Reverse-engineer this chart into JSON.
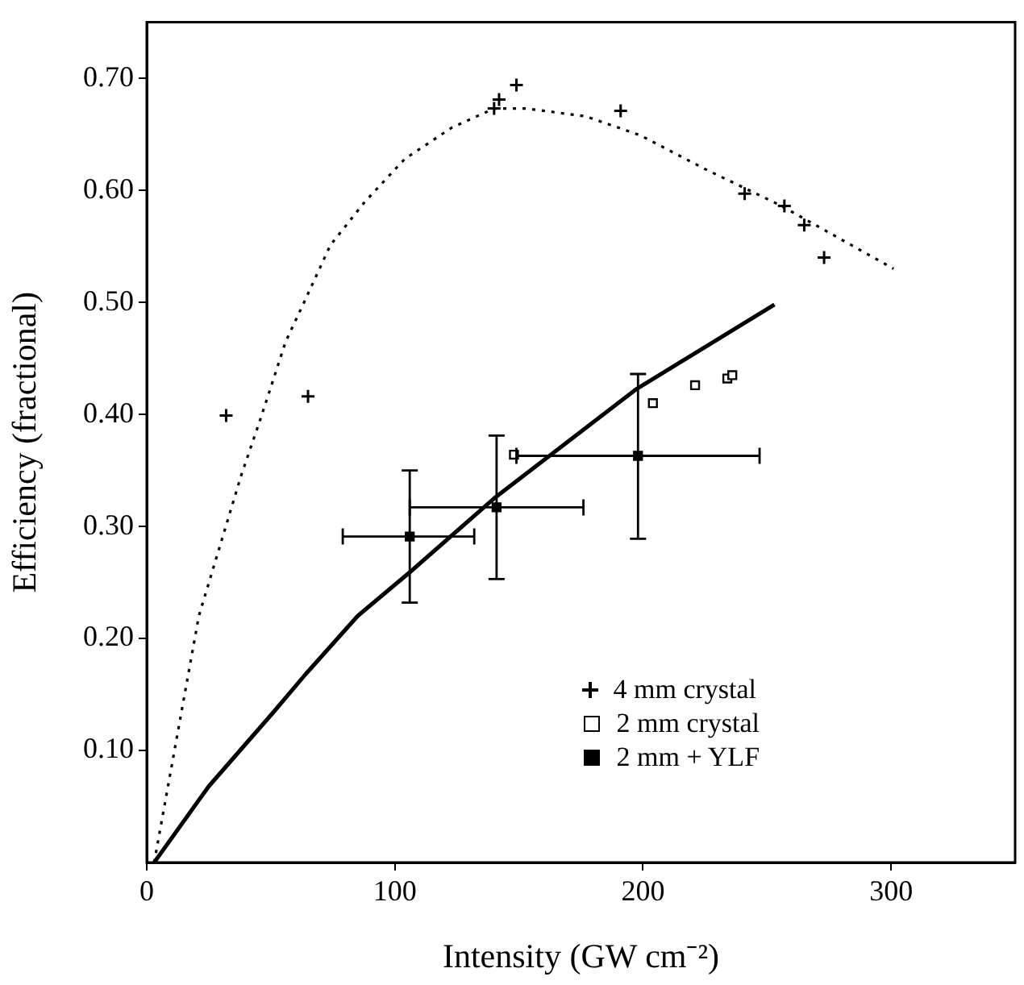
{
  "chart_data": {
    "type": "scatter",
    "xlabel": "Intensity (GW cm⁻²)",
    "ylabel": "Efficiency (fractional)",
    "xlim": [
      0,
      350
    ],
    "ylim": [
      0,
      0.75
    ],
    "xticks": [
      0,
      100,
      200,
      300
    ],
    "yticks": [
      {
        "value": 0.1,
        "label": "0.10"
      },
      {
        "value": 0.2,
        "label": "0.20"
      },
      {
        "value": 0.3,
        "label": "0.30"
      },
      {
        "value": 0.4,
        "label": "0.40"
      },
      {
        "value": 0.5,
        "label": "0.50"
      },
      {
        "value": 0.6,
        "label": "0.60"
      },
      {
        "value": 0.7,
        "label": "0.70"
      }
    ],
    "grid": false,
    "legend": "bottom right",
    "series": [
      {
        "type": "line",
        "color": "#000000",
        "marker": "none",
        "line_style": "dotted",
        "x": [
          3,
          21,
          38,
          46,
          56,
          63,
          74,
          88,
          104,
          123,
          140,
          153,
          177,
          199,
          225,
          255,
          301
        ],
        "values": [
          0,
          0.22,
          0.345,
          0.397,
          0.465,
          0.498,
          0.551,
          0.59,
          0.628,
          0.656,
          0.673,
          0.673,
          0.666,
          0.649,
          0.619,
          0.587,
          0.53
        ]
      },
      {
        "type": "line",
        "color": "#000000",
        "marker": "none",
        "line_style": "solid",
        "x": [
          3,
          25,
          51,
          64,
          85,
          106,
          140,
          197,
          253
        ],
        "values": [
          0,
          0.068,
          0.134,
          0.168,
          0.22,
          0.259,
          0.325,
          0.422,
          0.498
        ]
      },
      {
        "name": "4 mm crystal",
        "color": "#000000",
        "marker": "cross",
        "x": [
          32,
          65,
          140,
          142,
          149,
          191,
          241,
          257,
          265,
          273
        ],
        "values": [
          0.399,
          0.416,
          0.673,
          0.681,
          0.694,
          0.671,
          0.597,
          0.586,
          0.569,
          0.54
        ]
      },
      {
        "name": "2 mm crystal",
        "color": "#ffffff",
        "marker": "square",
        "x": [
          148,
          204,
          221,
          234,
          236
        ],
        "values": [
          0.364,
          0.41,
          0.426,
          0.432,
          0.435
        ]
      },
      {
        "name": "2 mm + YLF",
        "color": "#000000",
        "marker": "square",
        "x": [
          106,
          141,
          198
        ],
        "values": [
          0.291,
          0.317,
          0.363
        ],
        "errors": [
          [
            0.232,
            0.35
          ],
          [
            0.253,
            0.381
          ],
          [
            0.289,
            0.436
          ]
        ],
        "xerrors": [
          [
            79,
            132
          ],
          [
            106,
            176
          ],
          [
            149,
            247
          ]
        ]
      }
    ]
  }
}
